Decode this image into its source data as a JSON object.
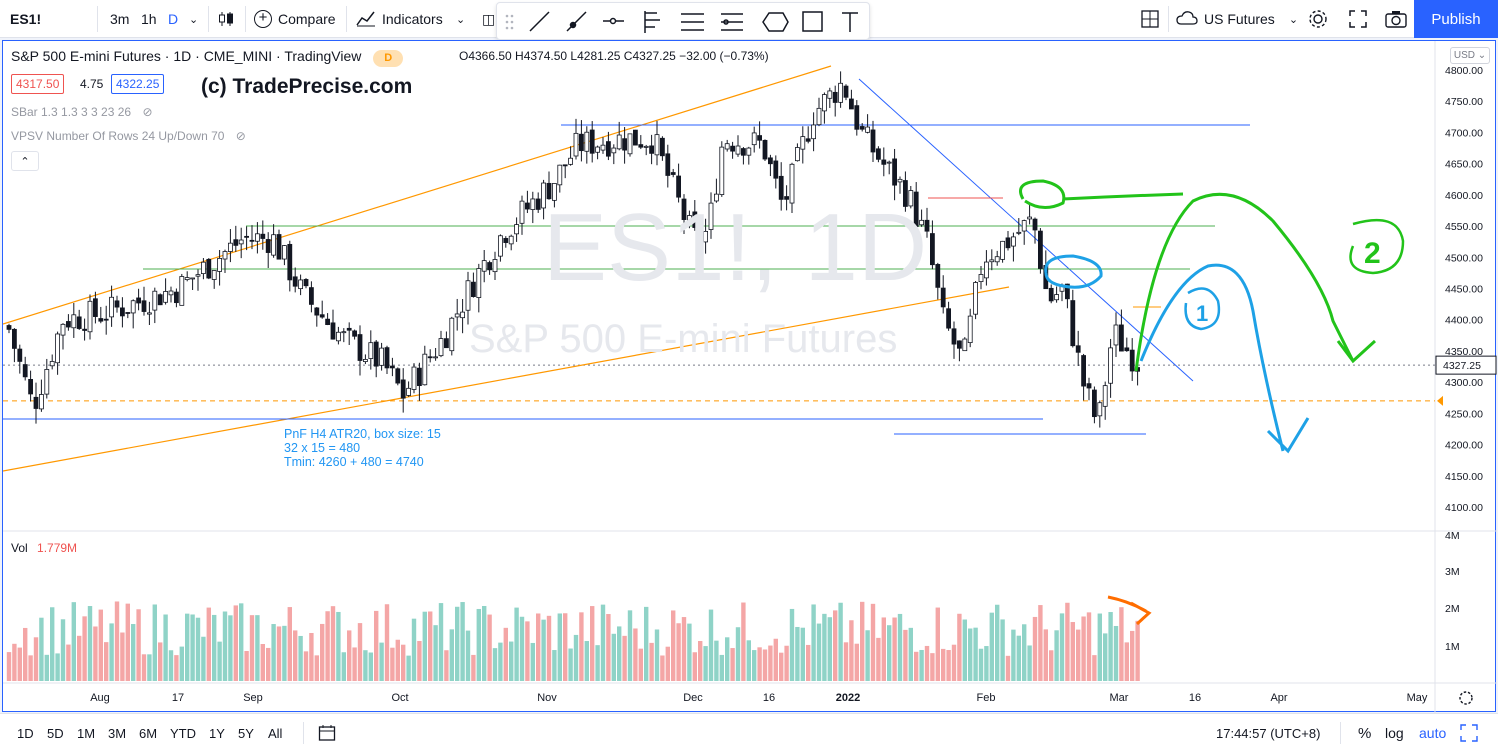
{
  "topbar": {
    "symbol": "ES1!",
    "intervals": [
      "3m",
      "1h",
      "D"
    ],
    "active_interval": "D",
    "compare_label": "Compare",
    "indicators_label": "Indicators",
    "exchange_label": "US Futures",
    "publish_label": "Publish"
  },
  "legend": {
    "title": "S&P 500 E-mini Futures · 1D · CME_MINI · TradingView",
    "delay_badge": "D",
    "ohlc": "O4366.50  H4374.50  L4281.25  C4327.25  −32.00 (−0.73%)",
    "bid": "4317.50",
    "spread": "4.75",
    "ask": "4322.25",
    "indicator1": "SBar 1.3 1.3 3 3 23 26",
    "indicator2": "VPSV Number Of Rows 24 Up/Down 70"
  },
  "brand_text": "(c) TradePrecise.com",
  "watermark": {
    "symbol": "ES1!, 1D",
    "name": "S&P 500 E-mini Futures"
  },
  "annotation": {
    "line1": "PnF H4 ATR20, box size: 15",
    "line2": "32 x 15 = 480",
    "line3": "Tmin: 4260 + 480 = 4740",
    "marker1": "1",
    "marker2": "2"
  },
  "price_axis": {
    "currency": "USD",
    "labels": [
      "4800.00",
      "4750.00",
      "4700.00",
      "4650.00",
      "4600.00",
      "4550.00",
      "4500.00",
      "4450.00",
      "4400.00",
      "4350.00",
      "4300.00",
      "4250.00",
      "4200.00",
      "4150.00",
      "4100.00"
    ],
    "last_price": "4327.25"
  },
  "volume": {
    "label": "Vol",
    "value": "1.779M",
    "axis_labels": [
      "4M",
      "3M",
      "2M",
      "1M"
    ]
  },
  "time_axis": [
    "Aug",
    "17",
    "Sep",
    "Oct",
    "Nov",
    "Dec",
    "16",
    "2022",
    "Feb",
    "Mar",
    "16",
    "Apr",
    "May"
  ],
  "bottombar": {
    "ranges": [
      "1D",
      "5D",
      "1M",
      "3M",
      "6M",
      "YTD",
      "1Y",
      "5Y",
      "All"
    ],
    "clock": "17:44:57 (UTC+8)",
    "percent_label": "%",
    "log_label": "log",
    "auto_label": "auto"
  },
  "colors": {
    "up_volume": "#8fd3c7",
    "down_volume": "#f4a6a6",
    "trendline_orange": "#ff9800",
    "trendline_blue": "#2962ff",
    "support_green": "#4caf50",
    "accent": "#2962ff"
  },
  "chart_data": {
    "type": "candlestick",
    "ylim": [
      4100,
      4800
    ],
    "x_ticks": [
      "Aug",
      "17",
      "Sep",
      "Oct",
      "Nov",
      "Dec",
      "16",
      "2022",
      "Feb",
      "Mar",
      "16",
      "Apr",
      "May"
    ],
    "last_close": 4327.25,
    "y_ticks": [
      4800,
      4750,
      4700,
      4650,
      4600,
      4550,
      4500,
      4450,
      4400,
      4350,
      4300,
      4250,
      4200,
      4150,
      4100
    ]
  }
}
